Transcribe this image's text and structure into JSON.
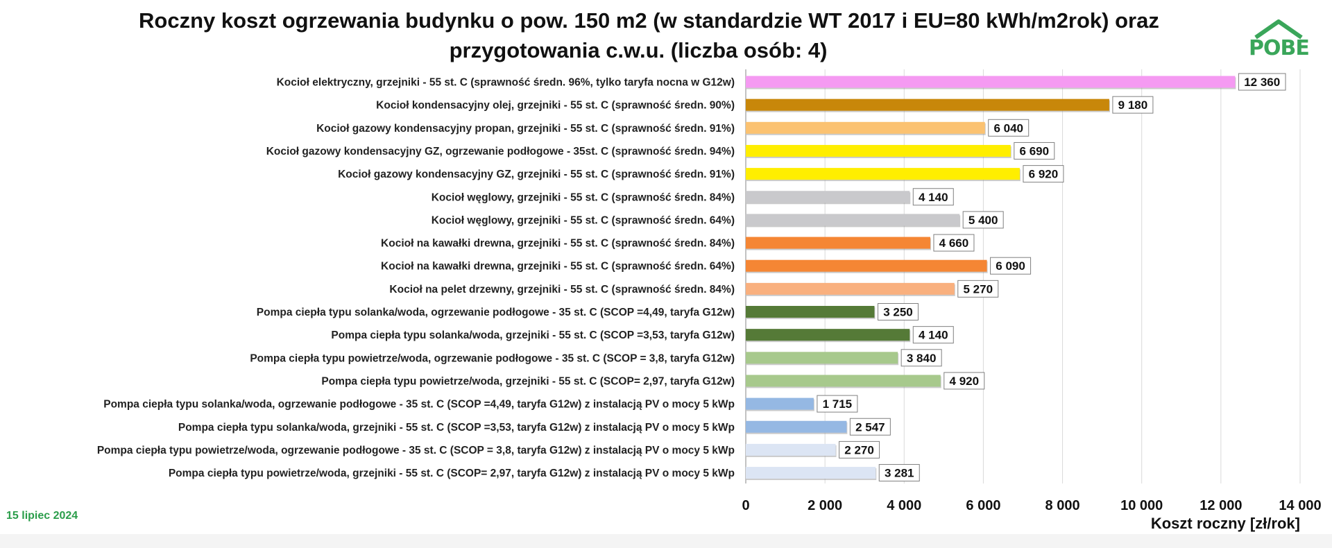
{
  "logo_text": "POBE",
  "date": "15 lipiec 2024",
  "colors": {
    "electric": "#f59af2",
    "oil": "#c8870a",
    "propane": "#fbc271",
    "gas": "#ffee00",
    "coal": "#c9c9cc",
    "wood": "#f58634",
    "pellet": "#f9b07e",
    "hp_ground": "#557a37",
    "hp_air": "#a7c98c",
    "hp_ground_pv": "#95b8e3",
    "hp_air_pv": "#dce5f4"
  },
  "chart_data": {
    "type": "bar",
    "orientation": "horizontal",
    "title": "Roczny koszt ogrzewania budynku  o pow. 150 m2 (w standardzie WT 2017 i EU=80 kWh/m2rok) oraz przygotowania c.w.u. (liczba osób: 4)",
    "title_lines": [
      "Roczny koszt ogrzewania budynku  o pow. 150 m2 (w standardzie WT 2017 i EU=80 kWh/m2rok) oraz",
      "przygotowania c.w.u. (liczba osób: 4)"
    ],
    "xlabel": "Koszt roczny [zł/rok]",
    "xlim": [
      0,
      14000
    ],
    "xticks": [
      0,
      2000,
      4000,
      6000,
      8000,
      10000,
      12000,
      14000
    ],
    "xtick_labels": [
      "0",
      "2 000",
      "4 000",
      "6 000",
      "8 000",
      "10 000",
      "12 000",
      "14 000"
    ],
    "grid": true,
    "categories": [
      "Kocioł  elektryczny,  grzejniki - 55 st. C  (sprawność średn. 96%, tylko taryfa nocna w G12w)",
      "Kocioł  kondensacyjny olej,  grzejniki - 55 st. C  (sprawność średn. 90%)",
      "Kocioł gazowy kondensacyjny propan, grzejniki - 55 st. C  (sprawność średn. 91%)",
      "Kocioł gazowy kondensacyjny GZ, ogrzewanie podłogowe - 35st. C  (sprawność średn. 94%)",
      "Kocioł gazowy kondensacyjny GZ, grzejniki - 55 st. C  (sprawność średn. 91%)",
      "Kocioł węglowy,  grzejniki - 55 st. C  (sprawność średn. 84%)",
      "Kocioł węglowy,  grzejniki - 55 st. C  (sprawność średn. 64%)",
      "Kocioł na kawałki drewna, grzejniki - 55 st. C (sprawność średn. 84%)",
      "Kocioł na kawałki drewna, grzejniki - 55 st. C  (sprawność średn. 64%)",
      "Kocioł na pelet drzewny, grzejniki - 55 st. C (sprawność średn. 84%)",
      "Pompa ciepła typu solanka/woda, ogrzewanie podłogowe - 35 st. C  (SCOP =4,49, taryfa G12w)",
      "Pompa ciepła typu solanka/woda, grzejniki - 55 st. C (SCOP =3,53, taryfa G12w)",
      "Pompa ciepła typu powietrze/woda, ogrzewanie podłogowe - 35 st. C (SCOP = 3,8, taryfa G12w)",
      "Pompa ciepła typu powietrze/woda, grzejniki - 55 st. C (SCOP= 2,97, taryfa G12w)",
      "Pompa ciepła typu solanka/woda, ogrzewanie podłogowe - 35 st. C  (SCOP =4,49, taryfa G12w) z instalacją PV o mocy 5 kWp",
      "Pompa ciepła typu solanka/woda, grzejniki - 55 st. C (SCOP =3,53, taryfa G12w) z instalacją PV o mocy 5 kWp",
      "Pompa ciepła typu powietrze/woda, ogrzewanie podłogowe - 35 st. C (SCOP = 3,8, taryfa G12w) z instalacją PV o mocy 5 kWp",
      "Pompa ciepła typu powietrze/woda, grzejniki - 55 st. C (SCOP= 2,97, taryfa G12w) z instalacją PV o mocy 5 kWp"
    ],
    "values": [
      12360,
      9180,
      6040,
      6690,
      6920,
      4140,
      5400,
      4660,
      6090,
      5270,
      3250,
      4140,
      3840,
      4920,
      1715,
      2547,
      2270,
      3281
    ],
    "value_labels": [
      "12 360",
      "9 180",
      "6 040",
      "6 690",
      "6 920",
      "4 140",
      "5 400",
      "4 660",
      "6 090",
      "5 270",
      "3 250",
      "4 140",
      "3 840",
      "4 920",
      "1 715",
      "2 547",
      "2 270",
      "3 281"
    ],
    "bar_colors": [
      "electric",
      "oil",
      "propane",
      "gas",
      "gas",
      "coal",
      "coal",
      "wood",
      "wood",
      "pellet",
      "hp_ground",
      "hp_ground",
      "hp_air",
      "hp_air",
      "hp_ground_pv",
      "hp_ground_pv",
      "hp_air_pv",
      "hp_air_pv"
    ]
  }
}
